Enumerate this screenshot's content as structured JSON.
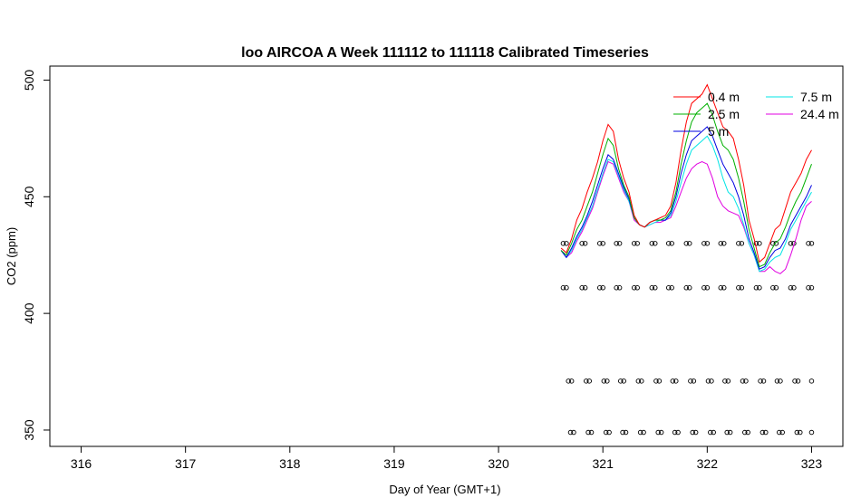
{
  "chart_data": {
    "type": "line",
    "title": "loo AIRCOA A  Week 111112 to 111118  Calibrated Timeseries",
    "xlabel": "Day of Year (GMT+1)",
    "ylabel": "CO2 (ppm)",
    "xlim": [
      315.7,
      323.3
    ],
    "ylim": [
      343,
      506
    ],
    "x_ticks": [
      316,
      317,
      318,
      319,
      320,
      321,
      322,
      323
    ],
    "y_ticks": [
      350,
      400,
      450,
      500
    ],
    "grid": false,
    "legend_position": "top-right",
    "series": [
      {
        "name": "0.4 m",
        "color": "#ff0000",
        "x": [
          320.6,
          320.65,
          320.7,
          320.75,
          320.8,
          320.85,
          320.9,
          320.95,
          321.0,
          321.05,
          321.1,
          321.15,
          321.2,
          321.25,
          321.3,
          321.35,
          321.4,
          321.45,
          321.5,
          321.55,
          321.6,
          321.65,
          321.7,
          321.75,
          321.8,
          321.85,
          321.9,
          321.95,
          322.0,
          322.05,
          322.1,
          322.15,
          322.2,
          322.25,
          322.3,
          322.35,
          322.4,
          322.45,
          322.5,
          322.55,
          322.6,
          322.65,
          322.7,
          322.75,
          322.8,
          322.85,
          322.9,
          322.95,
          323.0
        ],
        "values": [
          428,
          426,
          432,
          440,
          445,
          452,
          458,
          465,
          474,
          481,
          478,
          466,
          458,
          452,
          442,
          438,
          437,
          439,
          440,
          441,
          442,
          446,
          456,
          470,
          482,
          490,
          492,
          494,
          498,
          492,
          486,
          480,
          478,
          475,
          466,
          455,
          440,
          432,
          422,
          424,
          430,
          436,
          438,
          445,
          452,
          456,
          460,
          466,
          470
        ]
      },
      {
        "name": "2.5 m",
        "color": "#00b000",
        "x": [
          320.6,
          320.65,
          320.7,
          320.75,
          320.8,
          320.85,
          320.9,
          320.95,
          321.0,
          321.05,
          321.1,
          321.15,
          321.2,
          321.25,
          321.3,
          321.35,
          321.4,
          321.45,
          321.5,
          321.55,
          321.6,
          321.65,
          321.7,
          321.75,
          321.8,
          321.85,
          321.9,
          321.95,
          322.0,
          322.05,
          322.1,
          322.15,
          322.2,
          322.25,
          322.3,
          322.35,
          322.4,
          322.45,
          322.5,
          322.55,
          322.6,
          322.65,
          322.7,
          322.75,
          322.8,
          322.85,
          322.9,
          322.95,
          323.0
        ],
        "values": [
          427,
          425,
          430,
          436,
          440,
          446,
          452,
          460,
          468,
          475,
          472,
          462,
          455,
          450,
          441,
          438,
          437,
          439,
          440,
          440,
          441,
          444,
          452,
          464,
          474,
          482,
          486,
          488,
          490,
          485,
          478,
          472,
          470,
          466,
          458,
          448,
          436,
          428,
          420,
          421,
          426,
          430,
          432,
          437,
          443,
          448,
          452,
          458,
          464
        ]
      },
      {
        "name": "5 m",
        "color": "#0000e0",
        "x": [
          320.6,
          320.65,
          320.7,
          320.75,
          320.8,
          320.85,
          320.9,
          320.95,
          321.0,
          321.05,
          321.1,
          321.15,
          321.2,
          321.25,
          321.3,
          321.35,
          321.4,
          321.45,
          321.5,
          321.55,
          321.6,
          321.65,
          321.7,
          321.75,
          321.8,
          321.85,
          321.9,
          321.95,
          322.0,
          322.05,
          322.1,
          322.15,
          322.2,
          322.25,
          322.3,
          322.35,
          322.4,
          322.45,
          322.5,
          322.55,
          322.6,
          322.65,
          322.7,
          322.75,
          322.8,
          322.85,
          322.9,
          322.95,
          323.0
        ],
        "values": [
          427,
          424,
          428,
          433,
          437,
          442,
          448,
          455,
          462,
          468,
          466,
          460,
          454,
          449,
          441,
          438,
          437,
          439,
          440,
          440,
          440,
          443,
          450,
          460,
          468,
          474,
          476,
          478,
          480,
          476,
          470,
          464,
          460,
          456,
          450,
          442,
          432,
          426,
          419,
          420,
          424,
          427,
          428,
          432,
          438,
          442,
          446,
          450,
          455
        ]
      },
      {
        "name": "7.5 m",
        "color": "#00e5e5",
        "x": [
          320.6,
          320.65,
          320.7,
          320.75,
          320.8,
          320.85,
          320.9,
          320.95,
          321.0,
          321.05,
          321.1,
          321.15,
          321.2,
          321.25,
          321.3,
          321.35,
          321.4,
          321.45,
          321.5,
          321.55,
          321.6,
          321.65,
          321.7,
          321.75,
          321.8,
          321.85,
          321.9,
          321.95,
          322.0,
          322.05,
          322.1,
          322.15,
          322.2,
          322.25,
          322.3,
          322.35,
          322.4,
          322.45,
          322.5,
          322.55,
          322.6,
          322.65,
          322.7,
          322.75,
          322.8,
          322.85,
          322.9,
          322.95,
          323.0
        ],
        "values": [
          427,
          424,
          427,
          432,
          436,
          441,
          446,
          453,
          460,
          466,
          465,
          459,
          453,
          448,
          441,
          438,
          437,
          438,
          439,
          440,
          440,
          442,
          448,
          456,
          464,
          470,
          472,
          474,
          476,
          472,
          466,
          458,
          452,
          450,
          445,
          438,
          430,
          425,
          418,
          419,
          422,
          424,
          425,
          430,
          436,
          440,
          444,
          448,
          452
        ]
      },
      {
        "name": "24.4 m",
        "color": "#e000e0",
        "x": [
          320.6,
          320.65,
          320.7,
          320.75,
          320.8,
          320.85,
          320.9,
          320.95,
          321.0,
          321.05,
          321.1,
          321.15,
          321.2,
          321.25,
          321.3,
          321.35,
          321.4,
          321.45,
          321.5,
          321.55,
          321.6,
          321.65,
          321.7,
          321.75,
          321.8,
          321.85,
          321.9,
          321.95,
          322.0,
          322.05,
          322.1,
          322.15,
          322.2,
          322.25,
          322.3,
          322.35,
          322.4,
          322.45,
          322.5,
          322.55,
          322.6,
          322.65,
          322.7,
          322.75,
          322.8,
          322.85,
          322.9,
          322.95,
          323.0
        ],
        "values": [
          427,
          424,
          426,
          431,
          435,
          440,
          445,
          452,
          459,
          465,
          464,
          458,
          452,
          448,
          440,
          438,
          437,
          438,
          439,
          439,
          440,
          441,
          446,
          452,
          458,
          462,
          464,
          465,
          464,
          458,
          450,
          446,
          444,
          443,
          442,
          437,
          430,
          425,
          418,
          418,
          420,
          418,
          417,
          419,
          425,
          432,
          440,
          446,
          448
        ]
      }
    ],
    "marker_rows": [
      {
        "y": 430,
        "x": [
          320.62,
          320.65,
          320.8,
          320.83,
          320.97,
          321.0,
          321.13,
          321.16,
          321.3,
          321.33,
          321.47,
          321.5,
          321.63,
          321.66,
          321.8,
          321.83,
          321.97,
          322.0,
          322.13,
          322.16,
          322.3,
          322.33,
          322.47,
          322.5,
          322.63,
          322.66,
          322.8,
          322.83,
          322.97,
          323.0
        ]
      },
      {
        "y": 411,
        "x": [
          320.62,
          320.65,
          320.8,
          320.83,
          320.97,
          321.0,
          321.13,
          321.16,
          321.3,
          321.33,
          321.47,
          321.5,
          321.63,
          321.66,
          321.8,
          321.83,
          321.97,
          322.0,
          322.13,
          322.16,
          322.3,
          322.33,
          322.47,
          322.5,
          322.63,
          322.66,
          322.8,
          322.83,
          322.97,
          323.0
        ]
      },
      {
        "y": 371,
        "x": [
          320.67,
          320.7,
          320.84,
          320.87,
          321.01,
          321.04,
          321.17,
          321.2,
          321.34,
          321.37,
          321.51,
          321.54,
          321.67,
          321.7,
          321.84,
          321.87,
          322.01,
          322.04,
          322.17,
          322.2,
          322.34,
          322.37,
          322.51,
          322.54,
          322.67,
          322.7,
          322.84,
          322.87,
          323.0
        ]
      },
      {
        "y": 349,
        "x": [
          320.69,
          320.72,
          320.86,
          320.89,
          321.03,
          321.06,
          321.19,
          321.22,
          321.36,
          321.39,
          321.53,
          321.56,
          321.69,
          321.72,
          321.86,
          321.89,
          322.03,
          322.06,
          322.19,
          322.22,
          322.36,
          322.39,
          322.53,
          322.56,
          322.69,
          322.72,
          322.86,
          322.89,
          323.0
        ]
      }
    ]
  }
}
